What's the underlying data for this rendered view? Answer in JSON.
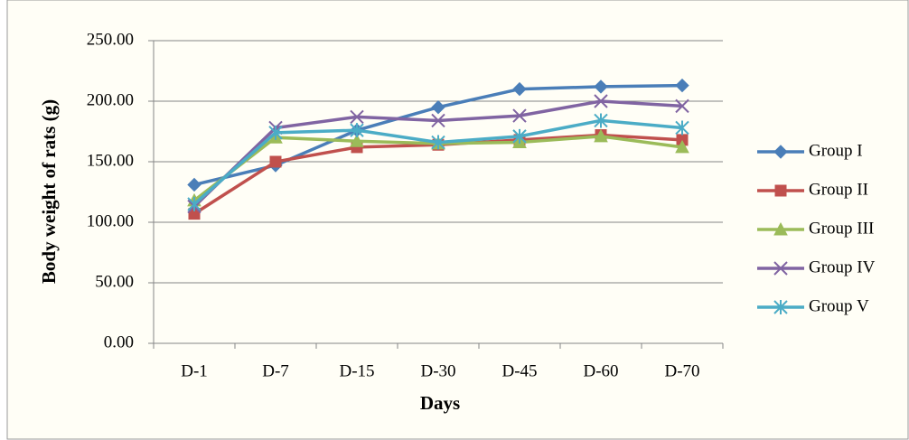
{
  "chart_data": {
    "type": "line",
    "x_label": "Days",
    "y_label": "Body weight of rats (g)",
    "categories": [
      "D-1",
      "D-7",
      "D-15",
      "D-30",
      "D-45",
      "D-60",
      "D-70"
    ],
    "series": [
      {
        "name": "Group I",
        "color": "#4a7eb8",
        "marker": "diamond",
        "values": [
          131,
          147,
          176,
          195,
          210,
          212,
          213
        ]
      },
      {
        "name": "Group II",
        "color": "#c0504d",
        "marker": "square",
        "values": [
          107,
          150,
          162,
          164,
          168,
          172,
          168
        ]
      },
      {
        "name": "Group III",
        "color": "#9bbb59",
        "marker": "triangle",
        "values": [
          118,
          170,
          167,
          165,
          166,
          171,
          162
        ]
      },
      {
        "name": "Group IV",
        "color": "#8064a2",
        "marker": "x",
        "values": [
          113,
          178,
          187,
          184,
          188,
          200,
          196
        ]
      },
      {
        "name": "Group V",
        "color": "#4bacc6",
        "marker": "star",
        "values": [
          115,
          174,
          176,
          166,
          171,
          184,
          178
        ]
      }
    ],
    "ylim": [
      0,
      250
    ],
    "yticks": [
      {
        "value": 0,
        "label": "0.00"
      },
      {
        "value": 50,
        "label": "50.00"
      },
      {
        "value": 100,
        "label": "100.00"
      },
      {
        "value": 150,
        "label": "150.00"
      },
      {
        "value": 200,
        "label": "200.00"
      },
      {
        "value": 250,
        "label": "250.00"
      }
    ],
    "grid": true,
    "legend": "right"
  }
}
